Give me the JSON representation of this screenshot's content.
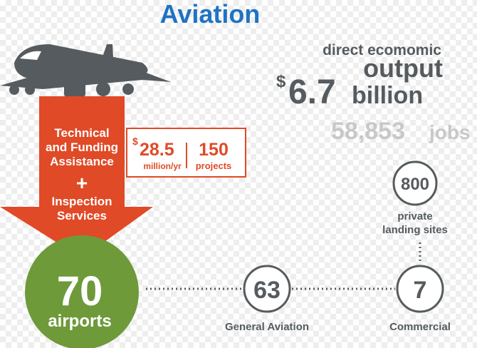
{
  "title": "Aviation",
  "economy": {
    "line1": "direct ecomomic",
    "line2": "output",
    "currency": "$",
    "amount": "6.7",
    "unit": "billion",
    "jobs_number": "58,853",
    "jobs_label": "jobs"
  },
  "assistance": {
    "line1": "Technical",
    "line2": "and Funding",
    "line3": "Assistance",
    "plus": "+",
    "line4": "Inspection",
    "line5": "Services"
  },
  "funding": {
    "currency": "$",
    "amount": "28.5",
    "unit": "million/yr",
    "projects_number": "150",
    "projects_label": "projects"
  },
  "airports": {
    "number": "70",
    "label": "airports"
  },
  "general_aviation": {
    "number": "63",
    "label": "General Aviation"
  },
  "commercial": {
    "number": "7",
    "label": "Commercial"
  },
  "private": {
    "number": "800",
    "label_line1": "private",
    "label_line2": "landing sites"
  }
}
